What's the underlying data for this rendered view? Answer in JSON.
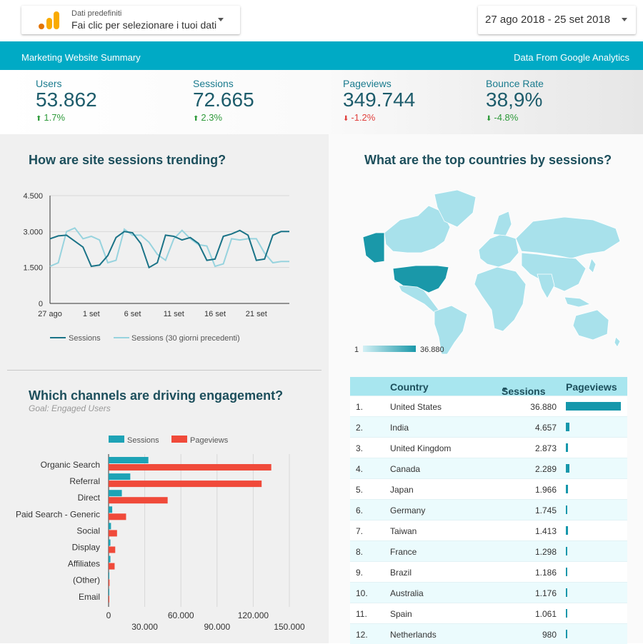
{
  "top": {
    "data_selector": {
      "small_label": "Dati predefiniti",
      "main_label": "Fai clic per selezionare i tuoi dati"
    },
    "date_selector": {
      "value": "27 ago 2018 - 25 set 2018"
    }
  },
  "banner": {
    "title": "Marketing Website Summary",
    "source": "Data From Google Analytics"
  },
  "kpis": [
    {
      "label": "Users",
      "value": "53.862",
      "delta": "1.7%",
      "direction": "up"
    },
    {
      "label": "Sessions",
      "value": "72.665",
      "delta": "2.3%",
      "direction": "up"
    },
    {
      "label": "Pageviews",
      "value": "349.744",
      "delta": "-1.2%",
      "direction": "down"
    },
    {
      "label": "Bounce Rate",
      "value": "38,9%",
      "delta": "-4.8%",
      "direction": "down"
    }
  ],
  "colors": {
    "accent": "#00aac5",
    "up": "#2e9a3a",
    "down": "#e0403d",
    "title": "#1d4f5c",
    "sessions": "#1597ab",
    "pageviews": "#f04a3a",
    "prev": "#97d3de"
  },
  "trend": {
    "title": "How are site sessions trending?",
    "legend": [
      "Sessions",
      "Sessions (30 giorni precedenti)"
    ],
    "yticks": [
      "4.500",
      "3.000",
      "1.500",
      "0"
    ],
    "xticks": [
      "27 ago",
      "1 set",
      "6 set",
      "11 set",
      "16 set",
      "21 set"
    ]
  },
  "map": {
    "title": "What are the top countries by sessions?",
    "legend_min": "1",
    "legend_max": "36.880"
  },
  "channels": {
    "title": "Which channels are driving engagement?",
    "subtitle": "Goal: Engaged Users",
    "legend": [
      "Sessions",
      "Pageviews"
    ],
    "xticks_top": [
      "0",
      "60.000",
      "120.000"
    ],
    "xticks_bottom": [
      "30.000",
      "90.000",
      "150.000"
    ]
  },
  "countries": {
    "headers": {
      "country": "Country",
      "sessions": "Sessions",
      "pageviews": "Pageviews"
    },
    "rows": [
      {
        "rank": "1.",
        "country": "United States",
        "sessions": "36.880",
        "pv": 1.0
      },
      {
        "rank": "2.",
        "country": "India",
        "sessions": "4.657",
        "pv": 0.07
      },
      {
        "rank": "3.",
        "country": "United Kingdom",
        "sessions": "2.873",
        "pv": 0.04
      },
      {
        "rank": "4.",
        "country": "Canada",
        "sessions": "2.289",
        "pv": 0.065
      },
      {
        "rank": "5.",
        "country": "Japan",
        "sessions": "1.966",
        "pv": 0.045
      },
      {
        "rank": "6.",
        "country": "Germany",
        "sessions": "1.745",
        "pv": 0.03
      },
      {
        "rank": "7.",
        "country": "Taiwan",
        "sessions": "1.413",
        "pv": 0.035
      },
      {
        "rank": "8.",
        "country": "France",
        "sessions": "1.298",
        "pv": 0.02
      },
      {
        "rank": "9.",
        "country": "Brazil",
        "sessions": "1.186",
        "pv": 0.02
      },
      {
        "rank": "10.",
        "country": "Australia",
        "sessions": "1.176",
        "pv": 0.02
      },
      {
        "rank": "11.",
        "country": "Spain",
        "sessions": "1.061",
        "pv": 0.02
      },
      {
        "rank": "12.",
        "country": "Netherlands",
        "sessions": "980",
        "pv": 0.02
      }
    ]
  },
  "chart_data": [
    {
      "type": "line",
      "x": [
        "27 ago",
        "28 ago",
        "29 ago",
        "30 ago",
        "31 ago",
        "1 set",
        "2 set",
        "3 set",
        "4 set",
        "5 set",
        "6 set",
        "7 set",
        "8 set",
        "9 set",
        "10 set",
        "11 set",
        "12 set",
        "13 set",
        "14 set",
        "15 set",
        "16 set",
        "17 set",
        "18 set",
        "19 set",
        "20 set",
        "21 set",
        "22 set",
        "23 set",
        "24 set",
        "25 set"
      ],
      "series": [
        {
          "name": "Sessions",
          "values": [
            2700,
            2820,
            2850,
            2600,
            2350,
            1550,
            1600,
            2000,
            2750,
            3000,
            2950,
            2500,
            1500,
            1700,
            2850,
            2800,
            2650,
            2750,
            2500,
            1800,
            1850,
            2800,
            2900,
            3050,
            2850,
            1800,
            1850,
            2850,
            3000,
            3000
          ]
        },
        {
          "name": "Sessions (30 giorni precedenti)",
          "values": [
            1550,
            1700,
            3000,
            3150,
            2700,
            2800,
            2650,
            1700,
            1800,
            3100,
            2850,
            2850,
            2550,
            2050,
            1800,
            2700,
            3050,
            2700,
            2450,
            2400,
            1550,
            1650,
            2700,
            2650,
            2700,
            2700,
            2100,
            1700,
            1750,
            1750
          ]
        }
      ],
      "ylim": [
        0,
        4500
      ]
    },
    {
      "type": "bar",
      "orientation": "horizontal",
      "categories": [
        "Organic Search",
        "Referral",
        "Direct",
        "Paid Search - Generic",
        "Social",
        "Display",
        "Affiliates",
        "(Other)",
        "Email"
      ],
      "series": [
        {
          "name": "Sessions",
          "values": [
            33000,
            18000,
            11000,
            3000,
            2000,
            1500,
            1500,
            300,
            100
          ]
        },
        {
          "name": "Pageviews",
          "values": [
            135000,
            127000,
            49000,
            14500,
            7000,
            5500,
            5000,
            800,
            200
          ]
        }
      ],
      "xlim": [
        0,
        150000
      ]
    }
  ]
}
